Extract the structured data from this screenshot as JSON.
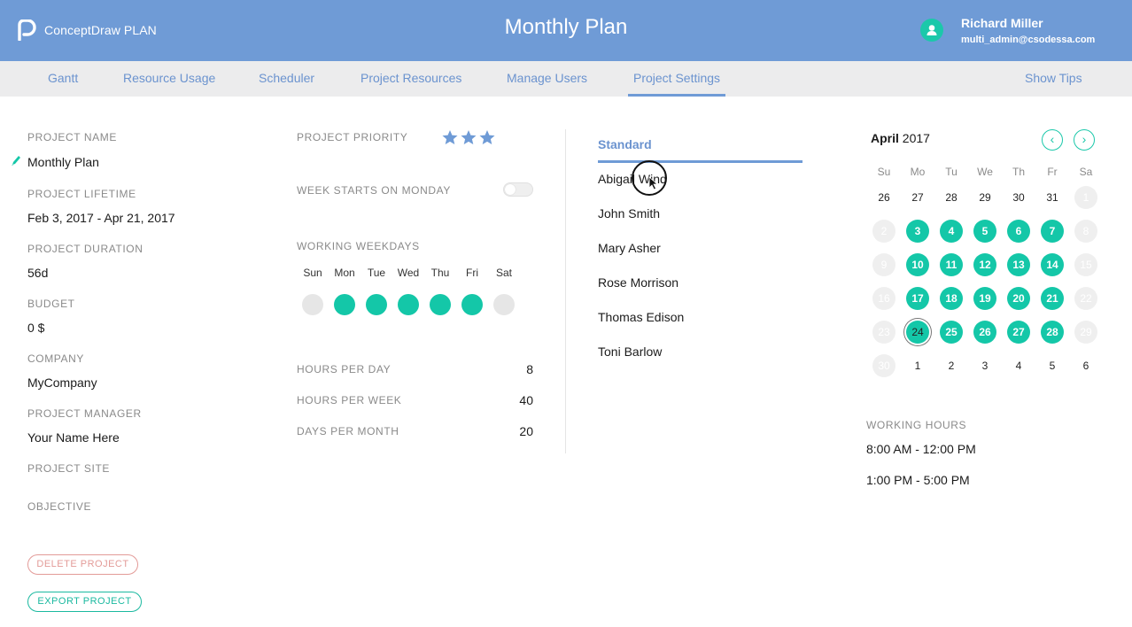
{
  "header": {
    "brand_light": "ConceptDraw",
    "brand_bold": "PLAN",
    "title": "Monthly Plan",
    "user_name": "Richard Miller",
    "user_email": "multi_admin@csodessa.com"
  },
  "nav": {
    "items": [
      "Gantt",
      "Resource Usage",
      "Scheduler",
      "Project Resources",
      "Manage Users",
      "Project Settings"
    ],
    "active": "Project Settings",
    "tips": "Show Tips"
  },
  "project": {
    "name_label": "PROJECT NAME",
    "name": "Monthly Plan",
    "lifetime_label": "PROJECT LIFETIME",
    "lifetime": "Feb 3, 2017 - Apr 21, 2017",
    "duration_label": "PROJECT DURATION",
    "duration": "56d",
    "budget_label": "BUDGET",
    "budget": "0 $",
    "company_label": "COMPANY",
    "company": "MyCompany",
    "manager_label": "PROJECT MANAGER",
    "manager": "Your Name Here",
    "site_label": "PROJECT SITE",
    "objective_label": "OBJECTIVE",
    "delete_label": "DELETE PROJECT",
    "export_label": "EXPORT PROJECT"
  },
  "settings": {
    "priority_label": "PROJECT PRIORITY",
    "priority_stars": 3,
    "week_monday_label": "WEEK STARTS ON MONDAY",
    "week_monday": false,
    "working_weekdays_label": "WORKING WEEKDAYS",
    "weekdays": [
      {
        "name": "Sun",
        "on": false
      },
      {
        "name": "Mon",
        "on": true
      },
      {
        "name": "Tue",
        "on": true
      },
      {
        "name": "Wed",
        "on": true
      },
      {
        "name": "Thu",
        "on": true
      },
      {
        "name": "Fri",
        "on": true
      },
      {
        "name": "Sat",
        "on": false
      }
    ],
    "hours_day_label": "HOURS PER DAY",
    "hours_day": "8",
    "hours_week_label": "HOURS PER WEEK",
    "hours_week": "40",
    "days_month_label": "DAYS PER MONTH",
    "days_month": "20"
  },
  "resources": {
    "tab": "Standard",
    "items": [
      "Abigail Wind",
      "John Smith",
      "Mary Asher",
      "Rose Morrison",
      "Thomas Edison",
      "Toni Barlow"
    ]
  },
  "calendar": {
    "month": "April",
    "year": "2017",
    "weekdays": [
      "Su",
      "Mo",
      "Tu",
      "We",
      "Th",
      "Fr",
      "Sa"
    ],
    "weeks": [
      [
        {
          "d": "26",
          "s": "n"
        },
        {
          "d": "27",
          "s": "n"
        },
        {
          "d": "28",
          "s": "n"
        },
        {
          "d": "29",
          "s": "n"
        },
        {
          "d": "30",
          "s": "n"
        },
        {
          "d": "31",
          "s": "n"
        },
        {
          "d": "1",
          "s": "off"
        }
      ],
      [
        {
          "d": "2",
          "s": "off"
        },
        {
          "d": "3",
          "s": "work"
        },
        {
          "d": "4",
          "s": "work"
        },
        {
          "d": "5",
          "s": "work"
        },
        {
          "d": "6",
          "s": "work"
        },
        {
          "d": "7",
          "s": "work"
        },
        {
          "d": "8",
          "s": "off"
        }
      ],
      [
        {
          "d": "9",
          "s": "off"
        },
        {
          "d": "10",
          "s": "work"
        },
        {
          "d": "11",
          "s": "work"
        },
        {
          "d": "12",
          "s": "work"
        },
        {
          "d": "13",
          "s": "work"
        },
        {
          "d": "14",
          "s": "work"
        },
        {
          "d": "15",
          "s": "off"
        }
      ],
      [
        {
          "d": "16",
          "s": "off"
        },
        {
          "d": "17",
          "s": "work"
        },
        {
          "d": "18",
          "s": "work"
        },
        {
          "d": "19",
          "s": "work"
        },
        {
          "d": "20",
          "s": "work"
        },
        {
          "d": "21",
          "s": "work"
        },
        {
          "d": "22",
          "s": "off"
        }
      ],
      [
        {
          "d": "23",
          "s": "off"
        },
        {
          "d": "24",
          "s": "today"
        },
        {
          "d": "25",
          "s": "work"
        },
        {
          "d": "26",
          "s": "work"
        },
        {
          "d": "27",
          "s": "work"
        },
        {
          "d": "28",
          "s": "work"
        },
        {
          "d": "29",
          "s": "off"
        }
      ],
      [
        {
          "d": "30",
          "s": "off"
        },
        {
          "d": "1",
          "s": "n"
        },
        {
          "d": "2",
          "s": "n"
        },
        {
          "d": "3",
          "s": "n"
        },
        {
          "d": "4",
          "s": "n"
        },
        {
          "d": "5",
          "s": "n"
        },
        {
          "d": "6",
          "s": "n"
        }
      ]
    ],
    "working_hours_label": "WORKING HOURS",
    "working_hours": [
      "8:00 AM - 12:00 PM",
      "1:00 PM - 5:00 PM"
    ]
  },
  "colors": {
    "header_bg": "#6f9bd6",
    "accent_green": "#14c7a8",
    "nav_bg": "#ececed",
    "delete": "#e39b98"
  }
}
